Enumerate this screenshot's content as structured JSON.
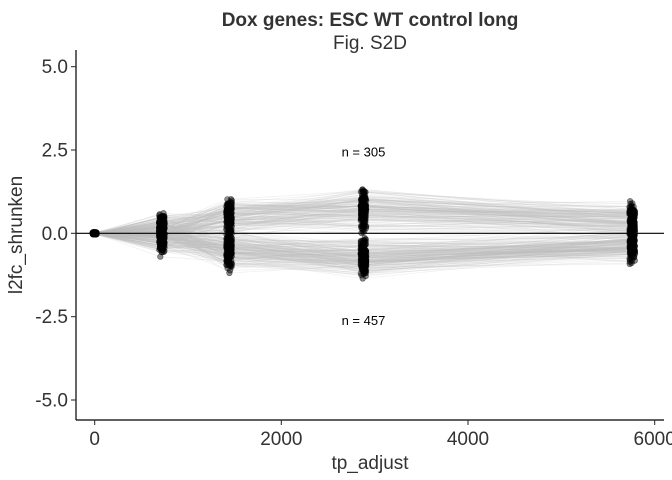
{
  "chart_data": {
    "type": "scatter",
    "title": "Dox genes: ESC WT control long",
    "subtitle": "Fig. S2D",
    "xlabel": "tp_adjust",
    "ylabel": "l2fc_shrunken",
    "xlim": [
      -200,
      6100
    ],
    "ylim": [
      -5.6,
      5.5
    ],
    "x_ticks": [
      0,
      2000,
      4000,
      6000
    ],
    "x_tick_labels": [
      "0",
      "2000",
      "4000",
      "6000"
    ],
    "y_ticks": [
      5.0,
      2.5,
      0.0,
      -2.5,
      -5.0
    ],
    "y_tick_labels": [
      "5.0",
      "2.5",
      "0.0",
      "-2.5",
      "-5.0"
    ],
    "timepoints": [
      0,
      720,
      1440,
      2880,
      5760
    ],
    "up_genes_count": 305,
    "down_genes_count": 457,
    "annotations": [
      {
        "text": "n = 305",
        "x": 2880,
        "y": 2.45
      },
      {
        "text": "n = 457",
        "x": 2880,
        "y": -2.6
      }
    ],
    "reference_line_y": 0,
    "point_color": "#000000",
    "line_color": "#bebebe",
    "grid": false
  }
}
